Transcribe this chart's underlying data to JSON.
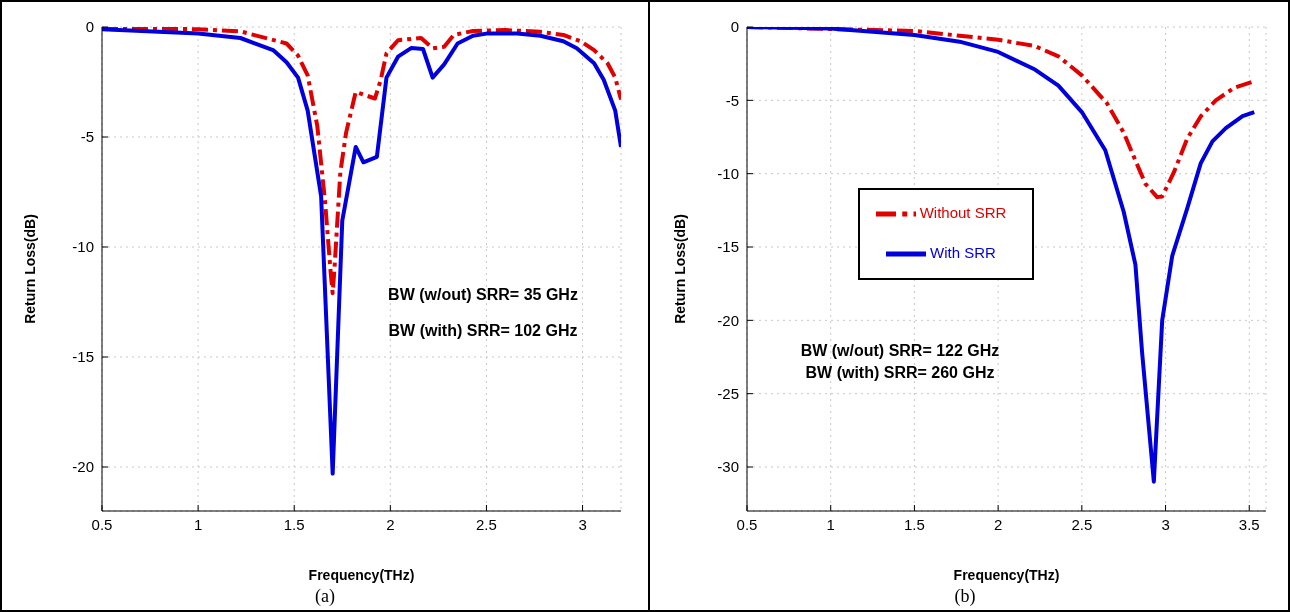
{
  "chart_data": [
    {
      "type": "line",
      "xlabel": "Frequency(THz)",
      "ylabel": "Return Loss(dB)",
      "xlim": [
        0.5,
        3.2
      ],
      "ylim": [
        -22,
        0
      ],
      "xticks": [
        0.5,
        1,
        1.5,
        2,
        2.5,
        3
      ],
      "yticks": [
        0,
        -5,
        -10,
        -15,
        -20
      ],
      "grid": true,
      "legend": false,
      "marker": "none",
      "series": [
        {
          "color": "#e00000",
          "line_style": "dashed",
          "x": [
            0.5,
            1.0,
            1.22,
            1.46,
            1.52,
            1.57,
            1.62,
            1.66,
            1.69,
            1.7,
            1.71,
            1.74,
            1.77,
            1.82,
            1.92,
            1.95,
            1.98,
            2.04,
            2.16,
            2.22,
            2.28,
            2.33,
            2.43,
            2.6,
            2.78,
            2.9,
            2.99,
            3.06,
            3.13,
            3.17,
            3.2
          ],
          "values": [
            -0.05,
            -0.1,
            -0.2,
            -0.75,
            -1.3,
            -2.2,
            -4.5,
            -7.9,
            -11.2,
            -12.1,
            -10.9,
            -6.6,
            -4.8,
            -2.95,
            -3.25,
            -2.4,
            -1.2,
            -0.6,
            -0.5,
            -0.97,
            -0.9,
            -0.36,
            -0.18,
            -0.14,
            -0.22,
            -0.36,
            -0.65,
            -1.05,
            -1.65,
            -2.3,
            -3.3
          ]
        },
        {
          "color": "#0000dd",
          "line_style": "solid",
          "x": [
            0.5,
            1.0,
            1.22,
            1.39,
            1.46,
            1.52,
            1.57,
            1.64,
            1.7,
            1.75,
            1.82,
            1.86,
            1.93,
            1.98,
            2.04,
            2.11,
            2.17,
            2.22,
            2.28,
            2.35,
            2.43,
            2.5,
            2.66,
            2.78,
            2.9,
            2.97,
            3.06,
            3.11,
            3.17,
            3.2
          ],
          "values": [
            -0.1,
            -0.3,
            -0.5,
            -1.05,
            -1.6,
            -2.3,
            -3.8,
            -7.7,
            -20.3,
            -8.8,
            -5.45,
            -6.15,
            -5.9,
            -2.3,
            -1.35,
            -0.95,
            -1.0,
            -2.3,
            -1.7,
            -0.75,
            -0.4,
            -0.3,
            -0.3,
            -0.4,
            -0.65,
            -0.97,
            -1.65,
            -2.4,
            -3.8,
            -5.45
          ]
        }
      ],
      "annotations": [
        "BW (w/out) SRR= 35 GHz",
        "BW (with) SRR= 102 GHz",
        "(a)"
      ]
    },
    {
      "type": "line",
      "xlabel": "Frequency(THz)",
      "ylabel": "Return Loss(dB)",
      "xlim": [
        0.5,
        3.6
      ],
      "ylim": [
        -33,
        0
      ],
      "xticks": [
        0.5,
        1,
        1.5,
        2,
        2.5,
        3,
        3.5
      ],
      "yticks": [
        0,
        -5,
        -10,
        -15,
        -20,
        -25,
        -30
      ],
      "grid": true,
      "legend": "left",
      "marker": "none",
      "series": [
        {
          "name": "Without SRR",
          "color": "#e00000",
          "line_style": "dashed",
          "x": [
            0.5,
            1.5,
            2.0,
            2.22,
            2.36,
            2.5,
            2.65,
            2.75,
            2.82,
            2.88,
            2.95,
            2.98,
            3.05,
            3.13,
            3.21,
            3.3,
            3.41,
            3.53
          ],
          "values": [
            0,
            -0.27,
            -0.87,
            -1.3,
            -2.0,
            -3.3,
            -5.2,
            -7.2,
            -9.1,
            -10.7,
            -11.6,
            -11.55,
            -9.9,
            -7.6,
            -6.1,
            -5.0,
            -4.15,
            -3.7
          ]
        },
        {
          "name": "With SRR",
          "color": "#0000dd",
          "line_style": "solid",
          "x": [
            0.5,
            1.0,
            1.5,
            1.77,
            2.0,
            2.22,
            2.36,
            2.5,
            2.64,
            2.75,
            2.82,
            2.86,
            2.93,
            2.98,
            3.04,
            3.13,
            3.21,
            3.28,
            3.36,
            3.46,
            3.53
          ],
          "values": [
            0,
            -0.1,
            -0.55,
            -1.0,
            -1.7,
            -2.9,
            -4.0,
            -5.8,
            -8.4,
            -12.6,
            -16.2,
            -22.2,
            -31,
            -20.0,
            -15.6,
            -12.35,
            -9.3,
            -7.8,
            -6.9,
            -6.07,
            -5.8
          ]
        }
      ],
      "annotations": [
        "BW (w/out) SRR= 122 GHz",
        "BW (with) SRR= 260 GHz",
        "(b)"
      ]
    }
  ]
}
